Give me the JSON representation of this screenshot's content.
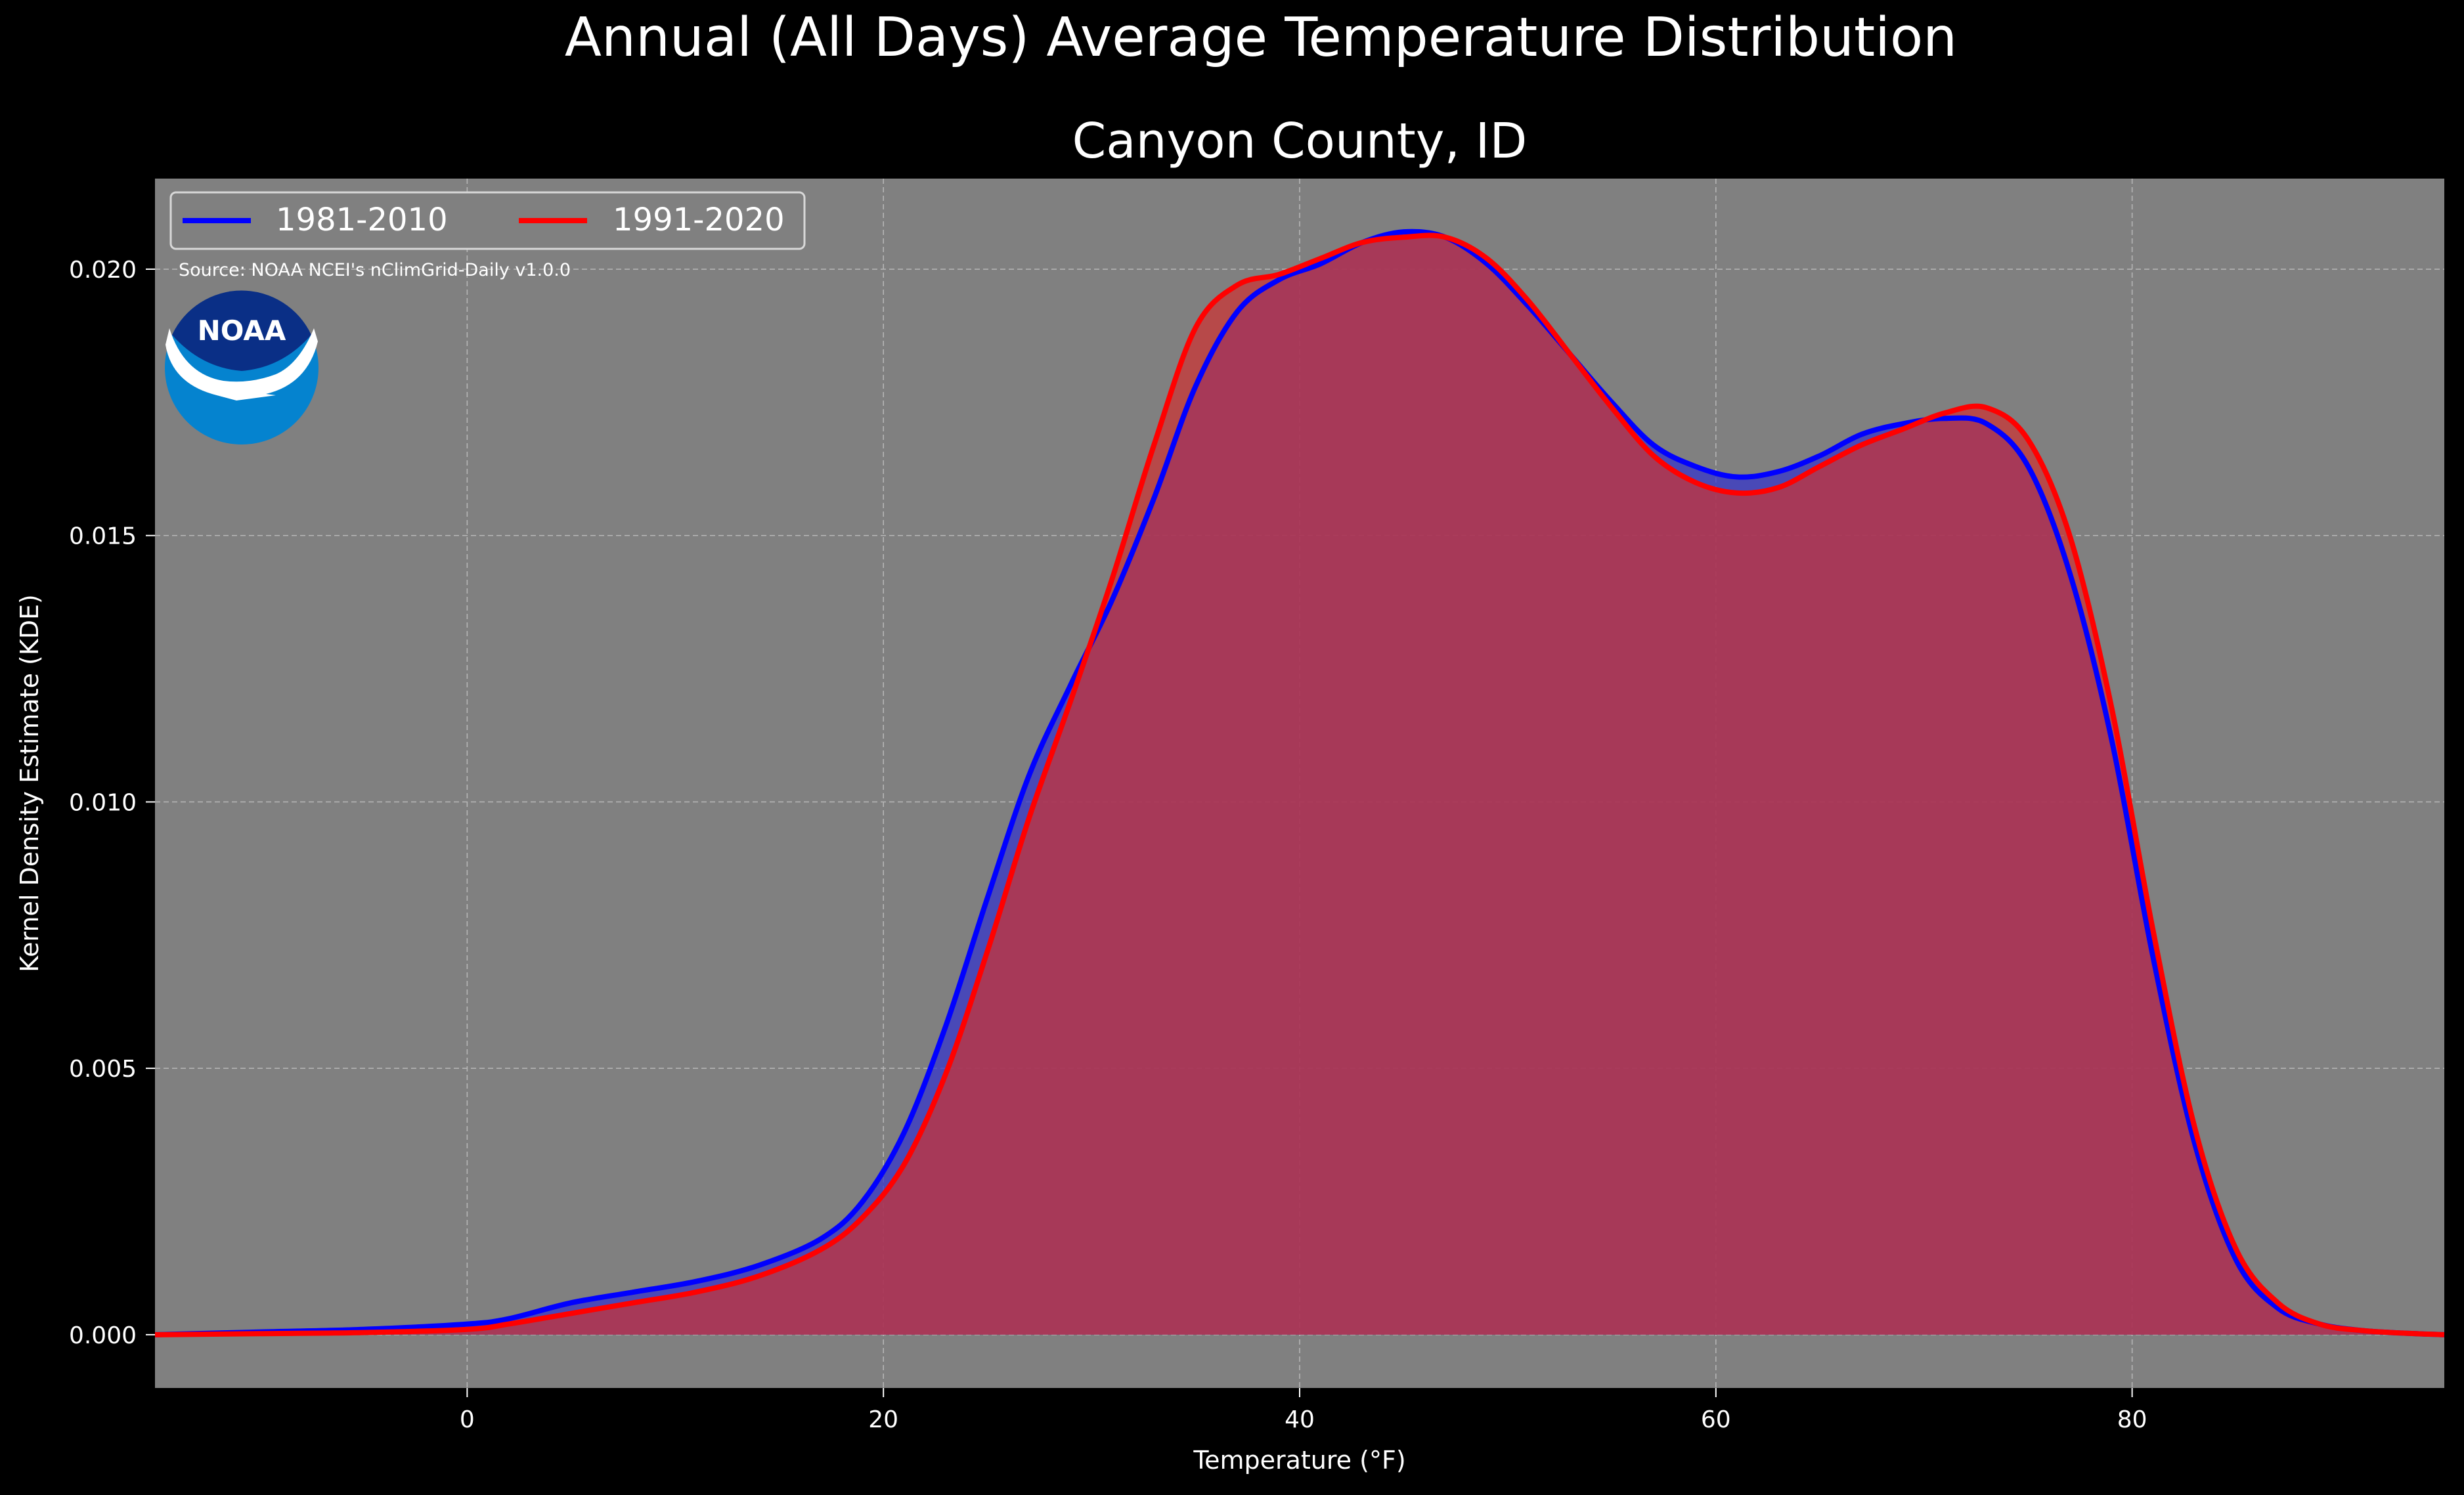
{
  "figure": {
    "suptitle": "Annual (All Days) Average Temperature Distribution",
    "source_note": "Source: NOAA NCEI's nClimGrid-Daily v1.0.0",
    "logo_text": "NOAA",
    "background_color": "#000000",
    "plot_background_color": "#808080"
  },
  "chart_data": {
    "type": "area",
    "title": "Canyon County, ID",
    "xlabel": "Temperature ($^\\circ$F)",
    "ylabel": "Kernel Density Estimate (KDE)",
    "xlim": [
      -15,
      95
    ],
    "ylim": [
      -0.001,
      0.0217
    ],
    "xticks": [
      0,
      20,
      40,
      60,
      80
    ],
    "xtick_labels": [
      "0",
      "20",
      "40",
      "60",
      "80"
    ],
    "yticks": [
      0.0,
      0.005,
      0.01,
      0.015,
      0.02
    ],
    "ytick_labels": [
      "0.000",
      "0.005",
      "0.010",
      "0.015",
      "0.020"
    ],
    "grid": true,
    "legend_position": "top-left",
    "series": [
      {
        "name": "1981-2010",
        "color": "#0000ff",
        "fill_color": "#3333cc",
        "x": [
          -15,
          -10,
          -5,
          0,
          2,
          5,
          8,
          11,
          14,
          17,
          19,
          21,
          23,
          25,
          27,
          29,
          31,
          33,
          35,
          37,
          39,
          41,
          43,
          45,
          47,
          49,
          51,
          53,
          55,
          57,
          59,
          61,
          63,
          65,
          67,
          69,
          71,
          73,
          75,
          77,
          79,
          81,
          83,
          85,
          87,
          89,
          91,
          93,
          95
        ],
        "y": [
          0.0,
          5e-05,
          0.0001,
          0.0002,
          0.0003,
          0.0006,
          0.0008,
          0.001,
          0.0013,
          0.0018,
          0.0025,
          0.0038,
          0.0058,
          0.0082,
          0.0105,
          0.0122,
          0.0138,
          0.0157,
          0.0178,
          0.0192,
          0.0198,
          0.0201,
          0.0205,
          0.0207,
          0.0206,
          0.0201,
          0.0193,
          0.0184,
          0.0175,
          0.0167,
          0.0163,
          0.0161,
          0.0162,
          0.0165,
          0.0169,
          0.0171,
          0.0172,
          0.0171,
          0.0163,
          0.0143,
          0.0112,
          0.0071,
          0.0036,
          0.0014,
          0.0005,
          0.0002,
          8e-05,
          3e-05,
          0.0
        ]
      },
      {
        "name": "1991-2020",
        "color": "#ff0000",
        "fill_color": "#cc3333",
        "x": [
          -15,
          -10,
          -5,
          0,
          2,
          5,
          8,
          11,
          14,
          17,
          19,
          21,
          23,
          25,
          27,
          29,
          31,
          33,
          35,
          37,
          39,
          41,
          43,
          45,
          47,
          49,
          51,
          53,
          55,
          57,
          59,
          61,
          63,
          65,
          67,
          69,
          71,
          73,
          75,
          77,
          79,
          81,
          83,
          85,
          87,
          89,
          91,
          93,
          95
        ],
        "y": [
          0.0,
          2e-05,
          4e-05,
          0.0001,
          0.0002,
          0.0004,
          0.0006,
          0.0008,
          0.0011,
          0.0016,
          0.0022,
          0.0032,
          0.0049,
          0.0072,
          0.0097,
          0.0119,
          0.0142,
          0.0167,
          0.0189,
          0.0197,
          0.0199,
          0.0202,
          0.0205,
          0.0206,
          0.0206,
          0.0202,
          0.0194,
          0.0184,
          0.0174,
          0.0165,
          0.016,
          0.0158,
          0.0159,
          0.0163,
          0.0167,
          0.017,
          0.0173,
          0.0174,
          0.0168,
          0.015,
          0.0118,
          0.0076,
          0.0039,
          0.0016,
          0.0006,
          0.0002,
          8e-05,
          3e-05,
          0.0
        ]
      }
    ]
  }
}
